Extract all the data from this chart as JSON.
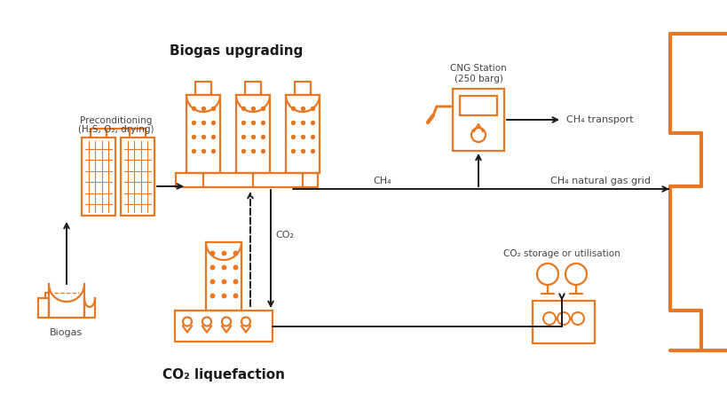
{
  "bg_color": "#ffffff",
  "orange": "#E87722",
  "black": "#1a1a1a",
  "figsize": [
    8.2,
    4.61
  ],
  "dpi": 100,
  "labels": {
    "biogas": "Biogas",
    "preconditioning_l1": "Preconditioning",
    "preconditioning_l2": "(H₂S, O₂, drying)",
    "upgrading": "Biogas upgrading",
    "liquefaction": "CO₂ liquefaction",
    "cng_l1": "CNG Station",
    "cng_l2": "(250 barg)",
    "ch4_transport": "CH₄ transport",
    "ch4_grid": "CH₄ natural gas grid",
    "co2_storage": "CO₂ storage or utilisation",
    "co2_label": "CO₂",
    "ch4_label": "CH₄"
  }
}
